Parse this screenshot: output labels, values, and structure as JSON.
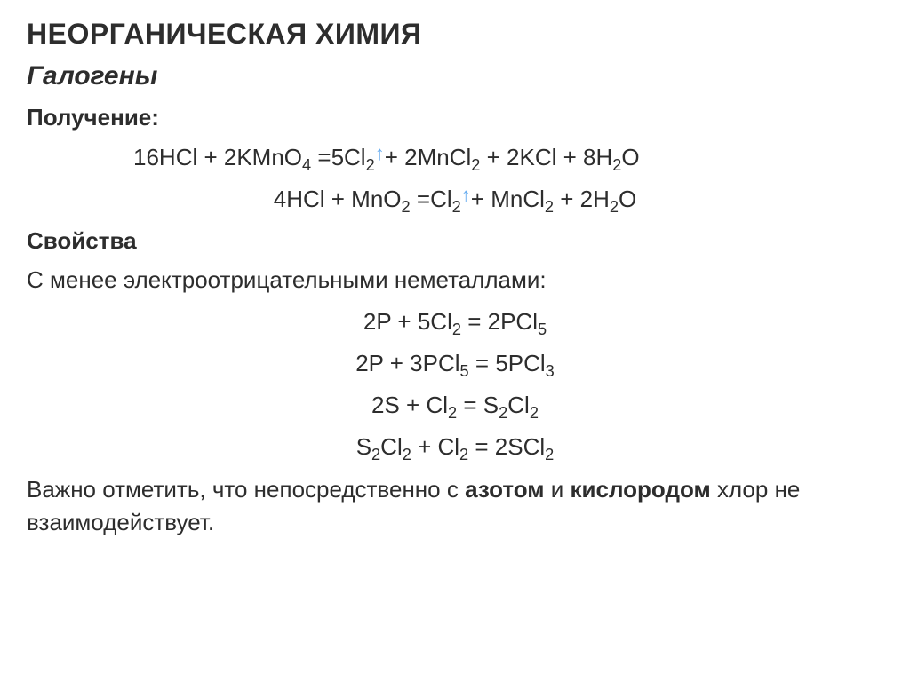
{
  "colors": {
    "background": "#ffffff",
    "text": "#2d2d2d",
    "arrow": "#6aaef0"
  },
  "typography": {
    "title_fontsize": 32,
    "subtitle_fontsize": 30,
    "heading_fontsize": 26,
    "body_fontsize": 26,
    "font_family": "Arial"
  },
  "title": "НЕОРГАНИЧЕСКАЯ ХИМИЯ",
  "subtitle": "Галогены",
  "section1_heading": "Получение:",
  "eq1_part1": "16HCl + 2KMnO",
  "eq1_sub1": "4",
  "eq1_part2": " =5Cl",
  "eq1_sub2": "2",
  "eq1_arrow1": "↑",
  "eq1_part3": "+ 2MnCl",
  "eq1_sub3": "2",
  "eq1_part4": " + 2KCl + 8H",
  "eq1_sub4": "2",
  "eq1_part5": "O",
  "eq2_part1": "4HCl + MnO",
  "eq2_sub1": "2",
  "eq2_part2": " =Cl",
  "eq2_sub2": "2",
  "eq2_arrow1": "↑",
  "eq2_part3": "+ MnCl",
  "eq2_sub3": "2",
  "eq2_part4": "  + 2H",
  "eq2_sub4": "2",
  "eq2_part5": "O",
  "section2_heading": "Свойства",
  "body1": "С менее электроотрицательными неметаллами:",
  "eq3_part1": "2P + 5Cl",
  "eq3_sub1": "2",
  "eq3_part2": " = 2PCl",
  "eq3_sub2": "5",
  "eq4_part1": "2P + 3PCl",
  "eq4_sub1": "5",
  "eq4_part2": " = 5PCl",
  "eq4_sub2": "3",
  "eq5_part1": "2S + Cl",
  "eq5_sub1": "2",
  "eq5_part2": " = S",
  "eq5_sub2": "2",
  "eq5_part3": "Cl",
  "eq5_sub3": "2",
  "eq6_part1": "S",
  "eq6_sub1": "2",
  "eq6_part2": "Cl",
  "eq6_sub2": "2",
  "eq6_part3": " + Cl",
  "eq6_sub3": "2",
  "eq6_part4": " = 2SCl",
  "eq6_sub4": "2",
  "body2_part1": "Важно отметить, что непосредственно с ",
  "body2_bold1": "азотом",
  "body2_part2": " и ",
  "body2_bold2": "кислородом",
  "body2_part3": " хлор не взаимодействует."
}
